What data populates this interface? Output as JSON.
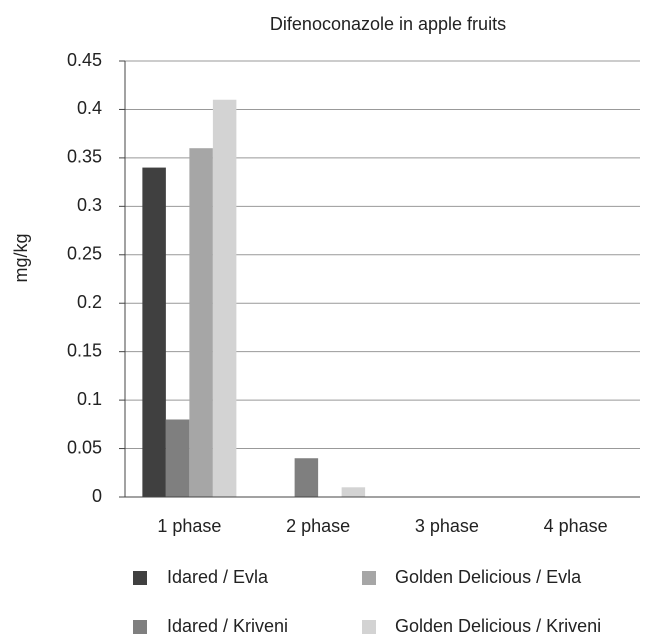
{
  "chart_data": {
    "type": "bar",
    "title": "Difenoconazole in apple fruits",
    "y_label": "mg/kg",
    "categories": [
      "1 phase",
      "2 phase",
      "3 phase",
      "4 phase"
    ],
    "series": [
      {
        "name": "Idared / Evla",
        "color": "#404040",
        "values": [
          0.34,
          0,
          0,
          0
        ]
      },
      {
        "name": "Idared / Kriveni",
        "color": "#7f7f7f",
        "values": [
          0.08,
          0.04,
          0,
          0
        ]
      },
      {
        "name": "Golden Delicious / Evla",
        "color": "#a6a6a6",
        "values": [
          0.36,
          0,
          0,
          0
        ]
      },
      {
        "name": "Golden Delicious / Kriveni",
        "color": "#d3d3d3",
        "values": [
          0.41,
          0.01,
          0,
          0
        ]
      }
    ],
    "ylim": [
      0,
      0.45
    ],
    "yticks": [
      0,
      0.05,
      0.1,
      0.15,
      0.2,
      0.25,
      0.3,
      0.35,
      0.4,
      0.45
    ],
    "grid": true
  }
}
